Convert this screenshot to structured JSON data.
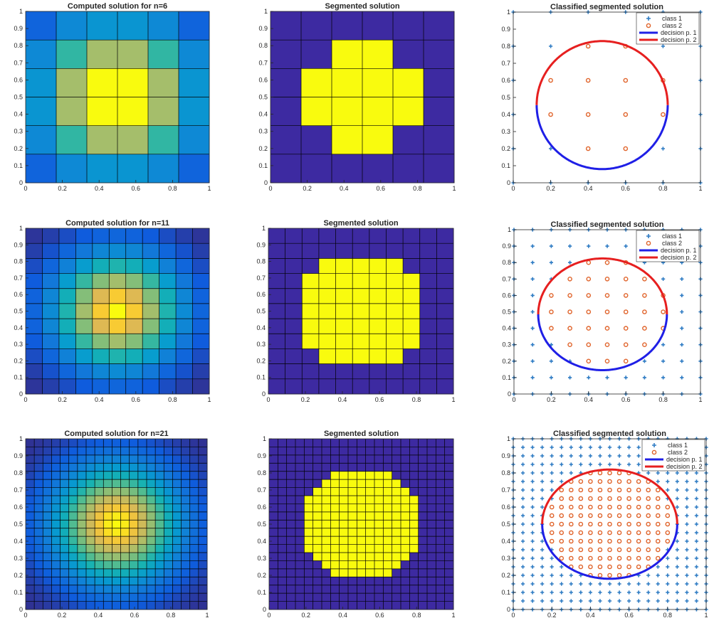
{
  "chart_data": [
    {
      "id": "p1",
      "type": "heatmap",
      "title": "Computed solution  for n=6",
      "n": 6,
      "colormap": "parula",
      "xticks": [
        "0",
        "0.2",
        "0.4",
        "0.6",
        "0.8",
        "1"
      ],
      "yticks": [
        "0",
        "0.1",
        "0.2",
        "0.3",
        "0.4",
        "0.5",
        "0.6",
        "0.7",
        "0.8",
        "0.9",
        "1"
      ],
      "values": [
        [
          0.15,
          0.3,
          0.35,
          0.35,
          0.3,
          0.15
        ],
        [
          0.3,
          0.55,
          0.75,
          0.75,
          0.55,
          0.3
        ],
        [
          0.35,
          0.75,
          1.0,
          1.0,
          0.75,
          0.35
        ],
        [
          0.35,
          0.75,
          1.0,
          1.0,
          0.75,
          0.35
        ],
        [
          0.3,
          0.55,
          0.75,
          0.75,
          0.55,
          0.3
        ],
        [
          0.15,
          0.3,
          0.35,
          0.35,
          0.3,
          0.15
        ]
      ]
    },
    {
      "id": "p2",
      "type": "heatmap",
      "title": "Segmented solution",
      "n": 6,
      "xticks": [
        "0",
        "0.2",
        "0.4",
        "0.6",
        "0.8",
        "1"
      ],
      "yticks": [
        "0",
        "0.1",
        "0.2",
        "0.3",
        "0.4",
        "0.5",
        "0.6",
        "0.7",
        "0.8",
        "0.9",
        "1"
      ],
      "values": [
        [
          0,
          0,
          0,
          0,
          0,
          0
        ],
        [
          0,
          0,
          1,
          1,
          0,
          0
        ],
        [
          0,
          1,
          1,
          1,
          1,
          0
        ],
        [
          0,
          1,
          1,
          1,
          1,
          0
        ],
        [
          0,
          0,
          1,
          1,
          0,
          0
        ],
        [
          0,
          0,
          0,
          0,
          0,
          0
        ]
      ]
    },
    {
      "id": "p3",
      "type": "scatter",
      "title": "Classified segmented solution",
      "n": 6,
      "xticks": [
        "0",
        "0.2",
        "0.4",
        "0.6",
        "0.8",
        "1"
      ],
      "yticks": [
        "0",
        "0.1",
        "0.2",
        "0.3",
        "0.4",
        "0.5",
        "0.6",
        "0.7",
        "0.8",
        "0.9",
        "1"
      ],
      "legend": [
        "class 1",
        "class 2",
        "decision p. 1",
        "decision p. 2"
      ],
      "ellipse": {
        "cx": 0.475,
        "cy": 0.455,
        "rx": 0.35,
        "ry": 0.375
      },
      "split_y": 0.48
    },
    {
      "id": "p4",
      "type": "heatmap",
      "title": "Computed solution  for n=11",
      "n": 11,
      "colormap": "parula",
      "xticks": [
        "0",
        "0.2",
        "0.4",
        "0.6",
        "0.8",
        "1"
      ],
      "yticks": [
        "0",
        "0.1",
        "0.2",
        "0.3",
        "0.4",
        "0.5",
        "0.6",
        "0.7",
        "0.8",
        "0.9",
        "1"
      ],
      "values": []
    },
    {
      "id": "p5",
      "type": "heatmap",
      "title": "Segmented solution",
      "n": 11,
      "xticks": [
        "0",
        "0.2",
        "0.4",
        "0.6",
        "0.8",
        "1"
      ],
      "yticks": [
        "0",
        "0.1",
        "0.2",
        "0.3",
        "0.4",
        "0.5",
        "0.6",
        "0.7",
        "0.8",
        "0.9",
        "1"
      ],
      "values": []
    },
    {
      "id": "p6",
      "type": "scatter",
      "title": "Classified segmented solution",
      "n": 11,
      "xticks": [
        "0",
        "0.2",
        "0.4",
        "0.6",
        "0.8",
        "1"
      ],
      "yticks": [
        "0",
        "0.1",
        "0.2",
        "0.3",
        "0.4",
        "0.5",
        "0.6",
        "0.7",
        "0.8",
        "0.9",
        "1"
      ],
      "legend": [
        "class 1",
        "class 2",
        "decision p. 1",
        "decision p. 2"
      ],
      "ellipse": {
        "cx": 0.475,
        "cy": 0.485,
        "rx": 0.345,
        "ry": 0.34
      },
      "split_y": 0.5
    },
    {
      "id": "p7",
      "type": "heatmap",
      "title": "Computed solution  for n=21",
      "n": 21,
      "colormap": "parula",
      "xticks": [
        "0",
        "0.2",
        "0.4",
        "0.6",
        "0.8",
        "1"
      ],
      "yticks": [
        "0",
        "0.1",
        "0.2",
        "0.3",
        "0.4",
        "0.5",
        "0.6",
        "0.7",
        "0.8",
        "0.9",
        "1"
      ],
      "values": []
    },
    {
      "id": "p8",
      "type": "heatmap",
      "title": "Segmented solution",
      "n": 21,
      "xticks": [
        "0",
        "0.2",
        "0.4",
        "0.6",
        "0.8",
        "1"
      ],
      "yticks": [
        "0",
        "0.1",
        "0.2",
        "0.3",
        "0.4",
        "0.5",
        "0.6",
        "0.7",
        "0.8",
        "0.9",
        "1"
      ],
      "values": []
    },
    {
      "id": "p9",
      "type": "scatter",
      "title": "Classified segmented solution",
      "n": 21,
      "xticks": [
        "0",
        "0.2",
        "0.4",
        "0.6",
        "0.8",
        "1"
      ],
      "yticks": [
        "0",
        "0.1",
        "0.2",
        "0.3",
        "0.4",
        "0.5",
        "0.6",
        "0.7",
        "0.8",
        "0.9",
        "1"
      ],
      "legend": [
        "class 1",
        "class 2",
        "decision p. 1",
        "decision p. 2"
      ],
      "ellipse": {
        "cx": 0.5,
        "cy": 0.5,
        "rx": 0.35,
        "ry": 0.32
      },
      "split_y": 0.5
    }
  ],
  "colors": {
    "segment_low": "#3d2aa1",
    "segment_high": "#f9fb0e",
    "class1": "#2f7cc4",
    "class2": "#e0632a",
    "decision1": "#1f1fe6",
    "decision2": "#e61f1f"
  }
}
